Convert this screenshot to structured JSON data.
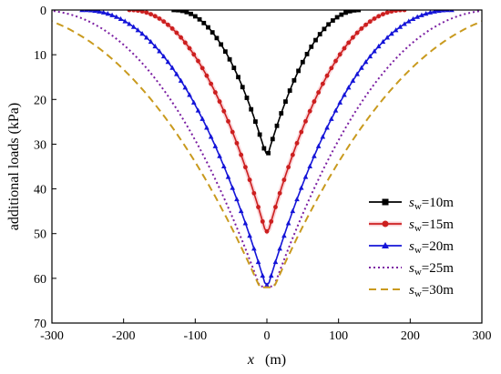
{
  "chart_data": {
    "type": "line",
    "xlabel_var": "x",
    "xlabel_unit": "(m)",
    "ylabel": "additional loads (kPa)",
    "xlim": [
      -300,
      300
    ],
    "ylim": [
      0,
      70
    ],
    "y_inverted": true,
    "x_axis_position": "top",
    "xticks": [
      -300,
      -200,
      -100,
      0,
      100,
      200,
      300
    ],
    "yticks": [
      0,
      10,
      20,
      30,
      40,
      50,
      60,
      70
    ],
    "grid": false,
    "legend_position": "bottom-right",
    "series": [
      {
        "name_prefix": "s",
        "name_sub": "w",
        "name_suffix": "=10m",
        "color": "#000000",
        "marker": "square",
        "dash": "solid",
        "peak": 32,
        "extent": 130,
        "shape": 0.55
      },
      {
        "name_prefix": "s",
        "name_sub": "w",
        "name_suffix": "=15m",
        "color": "#cc1f1f",
        "marker": "circle",
        "dash": "solid",
        "peak": 49.5,
        "extent": 192,
        "shape": 0.55
      },
      {
        "name_prefix": "s",
        "name_sub": "w",
        "name_suffix": "=20m",
        "color": "#1414d8",
        "marker": "triangle",
        "dash": "solid",
        "peak": 61.5,
        "extent": 258,
        "shape": 0.6
      },
      {
        "name_prefix": "s",
        "name_sub": "w",
        "name_suffix": "=25m",
        "color": "#7b1fa2",
        "marker": "none",
        "dash": "dot",
        "peak": 61.8,
        "extent": 323,
        "shape": 0.62
      },
      {
        "name_prefix": "s",
        "name_sub": "w",
        "name_suffix": "=30m",
        "color": "#c99a1e",
        "marker": "none",
        "dash": "dash",
        "peak": 62,
        "extent": 390,
        "shape": 0.62
      }
    ]
  }
}
